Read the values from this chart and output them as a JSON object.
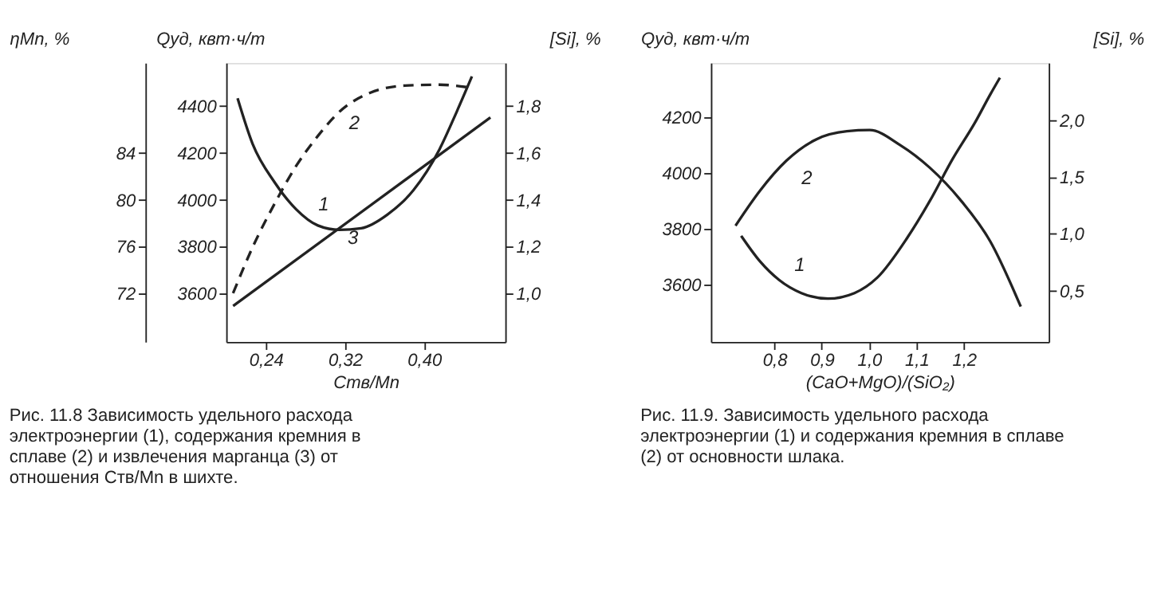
{
  "chart_data": [
    {
      "type": "line",
      "xlabel": "Cтв/Mn",
      "ylabel": "Qуд, квт·ч/т",
      "y2label": "[Si], %",
      "y3label": "ηMn, %",
      "xlim": [
        0.2,
        0.482
      ],
      "xticks": [
        {
          "value": 0.24,
          "label": "0,24"
        },
        {
          "value": 0.32,
          "label": "0,32"
        },
        {
          "value": 0.4,
          "label": "0,40"
        }
      ],
      "ylim": [
        3392,
        4583
      ],
      "yticks": [
        3600,
        3800,
        4000,
        4200,
        4400
      ],
      "y2lim": [
        0.792,
        1.983
      ],
      "y2ticks": [
        {
          "value": 1.0,
          "label": "1,0"
        },
        {
          "value": 1.2,
          "label": "1,2"
        },
        {
          "value": 1.4,
          "label": "1,4"
        },
        {
          "value": 1.6,
          "label": "1,6"
        },
        {
          "value": 1.8,
          "label": "1,8"
        }
      ],
      "y3lim": [
        67.84,
        91.66
      ],
      "y3ticks": [
        72,
        76,
        80,
        84
      ],
      "series": [
        {
          "color": "#222222",
          "line_style": "solid",
          "axis": "y",
          "x": [
            0.2115,
            0.2268,
            0.2488,
            0.2707,
            0.2926,
            0.3146,
            0.3365,
            0.3628,
            0.3891,
            0.4154,
            0.433,
            0.4483
          ],
          "values": [
            4432,
            4236,
            4074,
            3958,
            3889,
            3870,
            3877,
            3935,
            4039,
            4213,
            4375,
            4525
          ]
        },
        {
          "color": "#222222",
          "line_style": "dashed",
          "axis": "y2",
          "x": [
            0.207,
            0.2268,
            0.2488,
            0.2707,
            0.2926,
            0.3146,
            0.3453,
            0.3803,
            0.4154,
            0.444
          ],
          "values": [
            1.0,
            1.197,
            1.381,
            1.543,
            1.671,
            1.775,
            1.855,
            1.886,
            1.89,
            1.879
          ]
        },
        {
          "color": "#222222",
          "line_style": "solid",
          "axis": "y3",
          "x": [
            0.207,
            0.467
          ],
          "values": [
            70.9,
            87.0
          ]
        }
      ],
      "annotations": [
        "1",
        "2",
        "3",
        "Рис. 11.8 Зависимость удельного расхода электроэнергии (1), содержания кремния в сплаве (2) и извлечения марганца (3) от отношения Cтв/Mn в шихте."
      ]
    },
    {
      "type": "line",
      "xlabel": "(CaO+MgO)/(SiO₂)",
      "ylabel": "Qуд, квт·ч/т",
      "y2label": "[Si], %",
      "xlim": [
        0.666,
        1.379
      ],
      "xticks": [
        {
          "value": 0.8,
          "label": "0,8"
        },
        {
          "value": 0.9,
          "label": "0,9"
        },
        {
          "value": 1.0,
          "label": "1,0"
        },
        {
          "value": 1.1,
          "label": "1,1"
        },
        {
          "value": 1.2,
          "label": "1,2"
        }
      ],
      "ylim": [
        3395,
        4395
      ],
      "yticks": [
        3600,
        3800,
        4000,
        4200
      ],
      "y2lim": [
        0.05,
        2.5
      ],
      "y2ticks": [
        {
          "value": 0.5,
          "label": "0,5"
        },
        {
          "value": 1.0,
          "label": "1,0"
        },
        {
          "value": 1.5,
          "label": "1,5"
        },
        {
          "value": 2.0,
          "label": "2,0"
        }
      ],
      "series": [
        {
          "color": "#222222",
          "line_style": "solid",
          "axis": "y",
          "x": [
            0.73,
            0.77,
            0.81,
            0.857,
            0.913,
            0.969,
            1.017,
            1.08,
            1.128,
            1.176,
            1.224,
            1.256,
            1.276
          ],
          "values": [
            3775,
            3683,
            3617,
            3570,
            3550,
            3570,
            3625,
            3767,
            3900,
            4050,
            4183,
            4283,
            4342
          ]
        },
        {
          "color": "#222222",
          "line_style": "solid",
          "axis": "y2",
          "x": [
            0.718,
            0.77,
            0.825,
            0.889,
            0.953,
            1.001,
            1.065,
            1.128,
            1.192,
            1.256,
            1.32
          ],
          "values": [
            1.07,
            1.38,
            1.64,
            1.83,
            1.9,
            1.91,
            1.78,
            1.58,
            1.3,
            0.93,
            0.36
          ]
        }
      ],
      "annotations": [
        "1",
        "2",
        "Рис. 11.9. Зависимость удельного расхода электроэнергии (1) и содержания кремния в сплаве (2) от основности шлака."
      ]
    }
  ]
}
